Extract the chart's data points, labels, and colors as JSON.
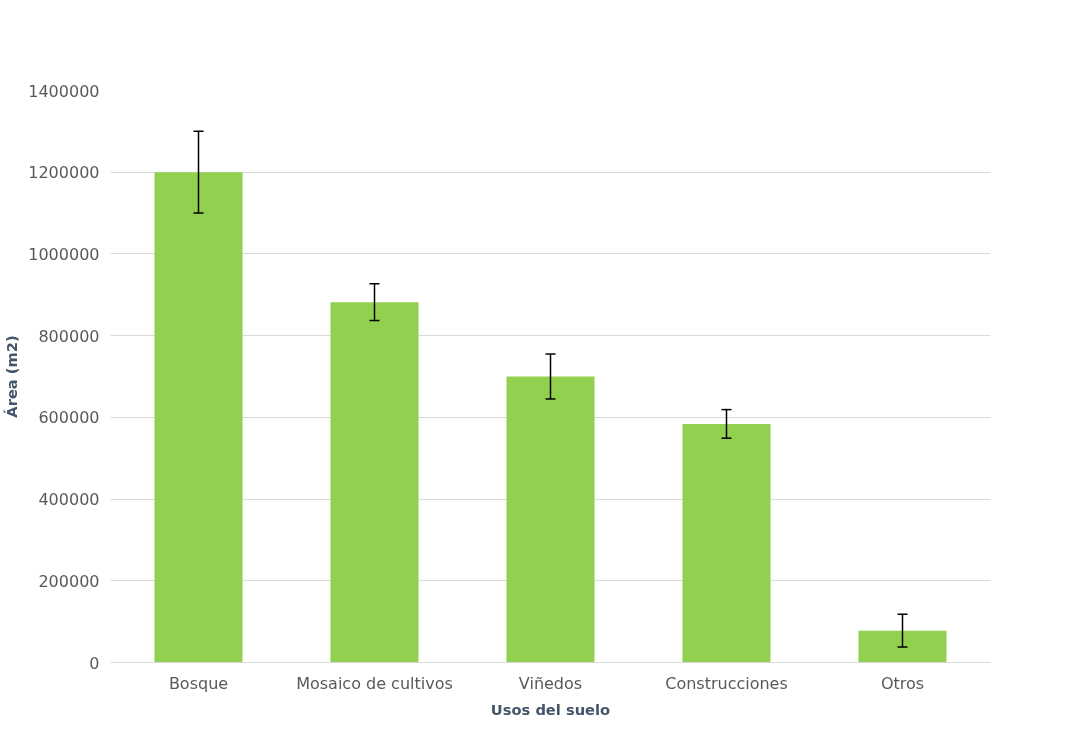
{
  "chart_data": {
    "type": "bar",
    "xlabel": "Usos del suelo",
    "ylabel": "Área (m2)",
    "categories": [
      "Bosque",
      "Mosaico de cultivos",
      "Viñedos",
      "Construcciones",
      "Otros"
    ],
    "values": [
      1200000,
      882000,
      700000,
      584000,
      78000
    ],
    "errors": [
      100000,
      45000,
      55000,
      35000,
      40000
    ],
    "color": "#92d050",
    "ylim": [
      0,
      1400000
    ],
    "yticks": [
      0,
      200000,
      400000,
      600000,
      800000,
      1000000,
      1200000,
      1400000
    ],
    "grid": "y"
  }
}
